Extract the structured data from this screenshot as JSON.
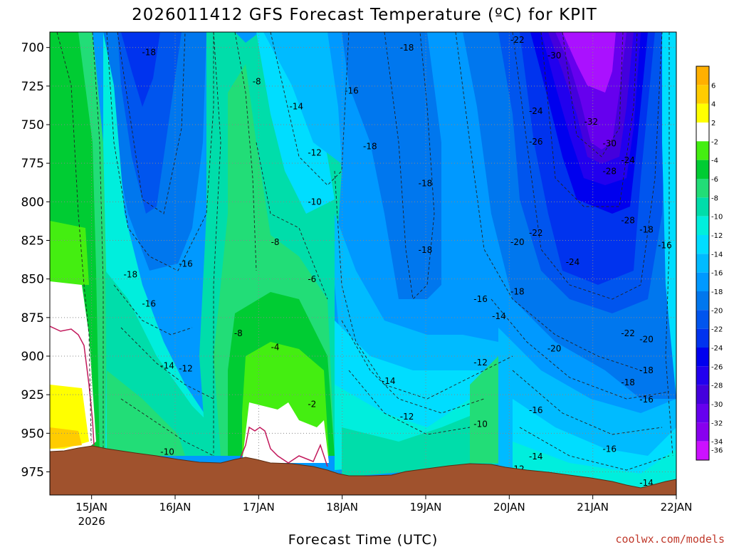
{
  "title": "2026011412 GFS Forecast Temperature (ºC) for KPIT",
  "credit": "coolwx.com/models",
  "colors": {
    "ground": "#a0522d",
    "freezing_line": "#c2185b",
    "grid": "#888888"
  },
  "chart_data": {
    "type": "heatmap",
    "title": "2026011412 GFS Forecast Temperature (ºC) for KPIT",
    "xlabel": "Forecast Time (UTC)",
    "ylabel": "",
    "x_ticks": [
      "15JAN",
      "16JAN",
      "17JAN",
      "18JAN",
      "19JAN",
      "20JAN",
      "21JAN",
      "22JAN"
    ],
    "x_sublabel": "2026",
    "x_range_hours": [
      0,
      180
    ],
    "y_ticks": [
      700,
      725,
      750,
      775,
      800,
      825,
      850,
      875,
      900,
      925,
      950,
      975
    ],
    "ylim": [
      990,
      690
    ],
    "y_reversed": true,
    "grid": true,
    "colorbar": {
      "levels": [
        6,
        4,
        2,
        -2,
        -4,
        -6,
        -8,
        -10,
        -12,
        -14,
        -16,
        -18,
        -20,
        -22,
        -24,
        -26,
        -28,
        -30,
        -32,
        -34,
        -36
      ],
      "colors": [
        "#ffb000",
        "#ffcc00",
        "#ffff00",
        "#ffffff",
        "#44ee11",
        "#00cc33",
        "#22dd77",
        "#00ddaa",
        "#00eedd",
        "#00ddff",
        "#00bbff",
        "#0099ff",
        "#0077ee",
        "#0055ee",
        "#0033ee",
        "#0000ee",
        "#2200ee",
        "#4400dd",
        "#6600ee",
        "#8800ee",
        "#cc11ff"
      ]
    },
    "contour_labels": [
      {
        "t": 30,
        "p": 705,
        "v": -18
      },
      {
        "t": 66,
        "p": 724,
        "v": -8
      },
      {
        "t": 78,
        "p": 740,
        "v": -14
      },
      {
        "t": 96,
        "p": 730,
        "v": -16
      },
      {
        "t": 84,
        "p": 770,
        "v": -12
      },
      {
        "t": 102,
        "p": 766,
        "v": -18
      },
      {
        "t": 84,
        "p": 802,
        "v": -10
      },
      {
        "t": 72,
        "p": 828,
        "v": -8
      },
      {
        "t": 84,
        "p": 852,
        "v": -6
      },
      {
        "t": 24,
        "p": 849,
        "v": -18
      },
      {
        "t": 30,
        "p": 868,
        "v": -16
      },
      {
        "t": 42,
        "p": 842,
        "v": -16
      },
      {
        "t": 60,
        "p": 887,
        "v": -8
      },
      {
        "t": 72,
        "p": 896,
        "v": -4
      },
      {
        "t": 84,
        "p": 933,
        "v": -2
      },
      {
        "t": 36,
        "p": 908,
        "v": -14
      },
      {
        "t": 42,
        "p": 910,
        "v": -12
      },
      {
        "t": 36,
        "p": 964,
        "v": -10
      },
      {
        "t": 114,
        "p": 702,
        "v": -18
      },
      {
        "t": 120,
        "p": 790,
        "v": -18
      },
      {
        "t": 120,
        "p": 833,
        "v": -18
      },
      {
        "t": 108,
        "p": 918,
        "v": -14
      },
      {
        "t": 114,
        "p": 941,
        "v": -12
      },
      {
        "t": 138,
        "p": 906,
        "v": -12
      },
      {
        "t": 138,
        "p": 865,
        "v": -16
      },
      {
        "t": 144,
        "p": 876,
        "v": -14
      },
      {
        "t": 138,
        "p": 946,
        "v": -10
      },
      {
        "t": 150,
        "p": 697,
        "v": -22
      },
      {
        "t": 162,
        "p": 707,
        "v": -30
      },
      {
        "t": 156,
        "p": 743,
        "v": -24
      },
      {
        "t": 156,
        "p": 763,
        "v": -26
      },
      {
        "t": 174,
        "p": 750,
        "v": -32
      },
      {
        "t": 180,
        "p": 764,
        "v": -30
      },
      {
        "t": 186,
        "p": 775,
        "v": -24
      },
      {
        "t": 180,
        "p": 782,
        "v": -28
      },
      {
        "t": 186,
        "p": 814,
        "v": -28
      },
      {
        "t": 168,
        "p": 841,
        "v": -24
      },
      {
        "t": 156,
        "p": 822,
        "v": -22
      },
      {
        "t": 150,
        "p": 828,
        "v": -20
      },
      {
        "t": 150,
        "p": 860,
        "v": -18
      },
      {
        "t": 162,
        "p": 897,
        "v": -20
      },
      {
        "t": 186,
        "p": 887,
        "v": -22
      },
      {
        "t": 192,
        "p": 891,
        "v": -20
      },
      {
        "t": 186,
        "p": 919,
        "v": -18
      },
      {
        "t": 192,
        "p": 911,
        "v": -18
      },
      {
        "t": 192,
        "p": 820,
        "v": -18
      },
      {
        "t": 198,
        "p": 830,
        "v": -16
      },
      {
        "t": 156,
        "p": 937,
        "v": -16
      },
      {
        "t": 192,
        "p": 930,
        "v": -16
      },
      {
        "t": 180,
        "p": 962,
        "v": -16
      },
      {
        "t": 156,
        "p": 967,
        "v": -14
      },
      {
        "t": 192,
        "p": 984,
        "v": -14
      },
      {
        "t": 150,
        "p": 975,
        "v": -12
      }
    ]
  }
}
